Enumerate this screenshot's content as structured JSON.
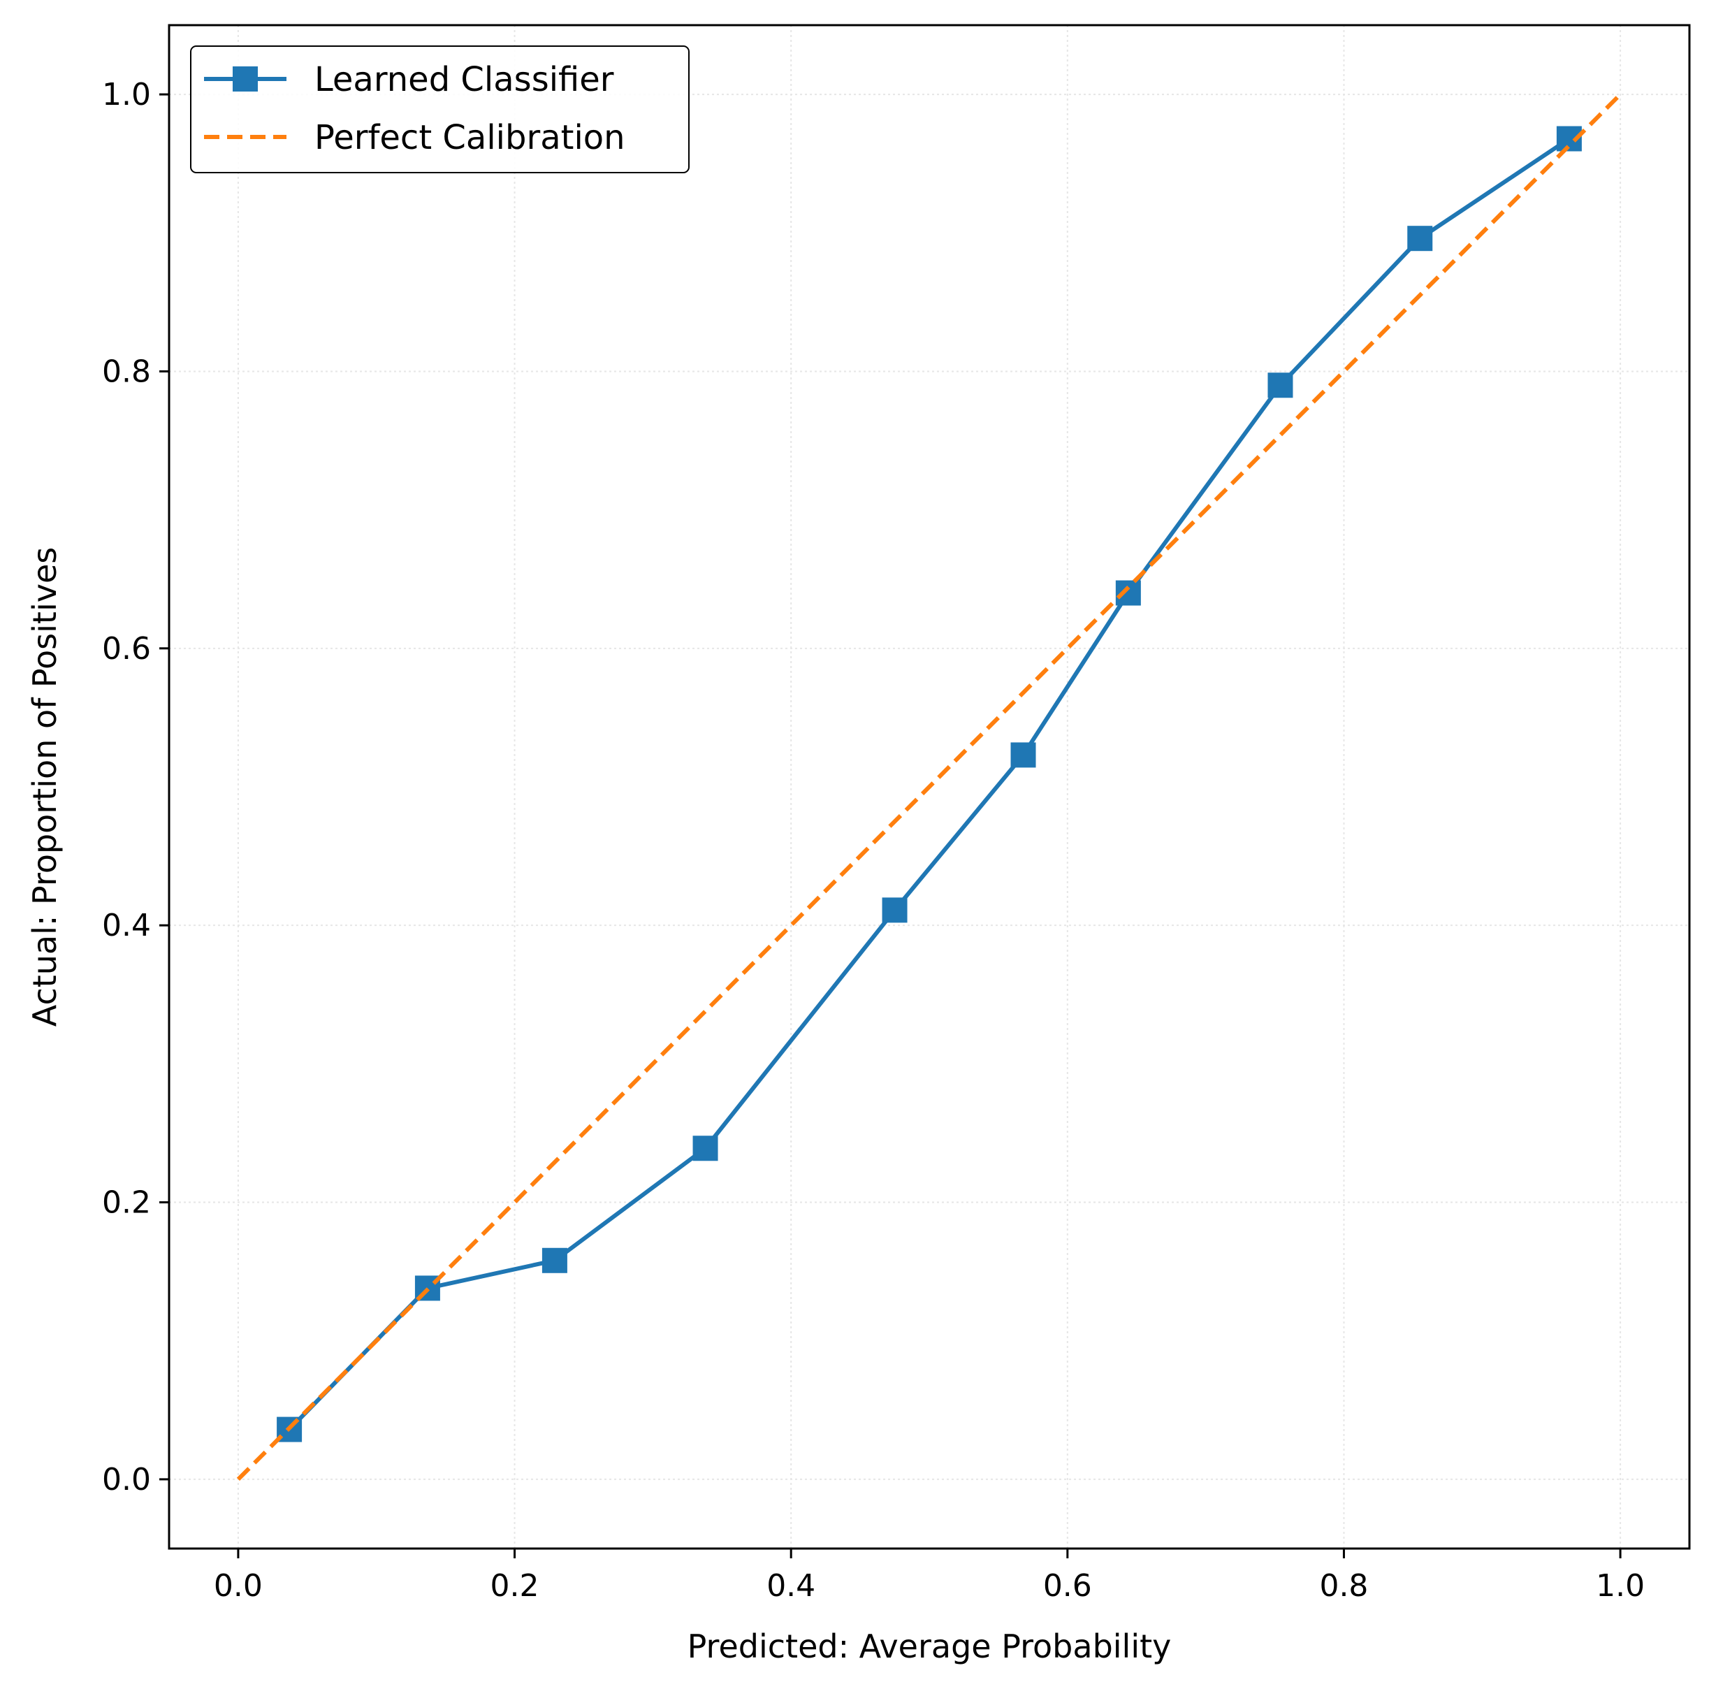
{
  "chart_data": {
    "type": "line",
    "xlabel": "Predicted: Average Probability",
    "ylabel": "Actual: Proportion of Positives",
    "xlim": [
      -0.05,
      1.05
    ],
    "ylim": [
      -0.05,
      1.05
    ],
    "xticks": [
      "0.0",
      "0.2",
      "0.4",
      "0.6",
      "0.8",
      "1.0"
    ],
    "yticks": [
      "0.0",
      "0.2",
      "0.4",
      "0.6",
      "0.8",
      "1.0"
    ],
    "grid": true,
    "legend_position": "top-left",
    "series": [
      {
        "name": "Learned Classifier",
        "color": "#1f77b4",
        "style": "solid",
        "marker": "square",
        "x": [
          0.037,
          0.137,
          0.229,
          0.338,
          0.475,
          0.568,
          0.644,
          0.754,
          0.855,
          0.963
        ],
        "y": [
          0.036,
          0.138,
          0.158,
          0.239,
          0.411,
          0.523,
          0.64,
          0.79,
          0.896,
          0.968
        ]
      },
      {
        "name": "Perfect Calibration",
        "color": "#ff7f0e",
        "style": "dashed",
        "marker": "none",
        "x": [
          0.0,
          1.0
        ],
        "y": [
          0.0,
          1.0
        ]
      }
    ]
  }
}
